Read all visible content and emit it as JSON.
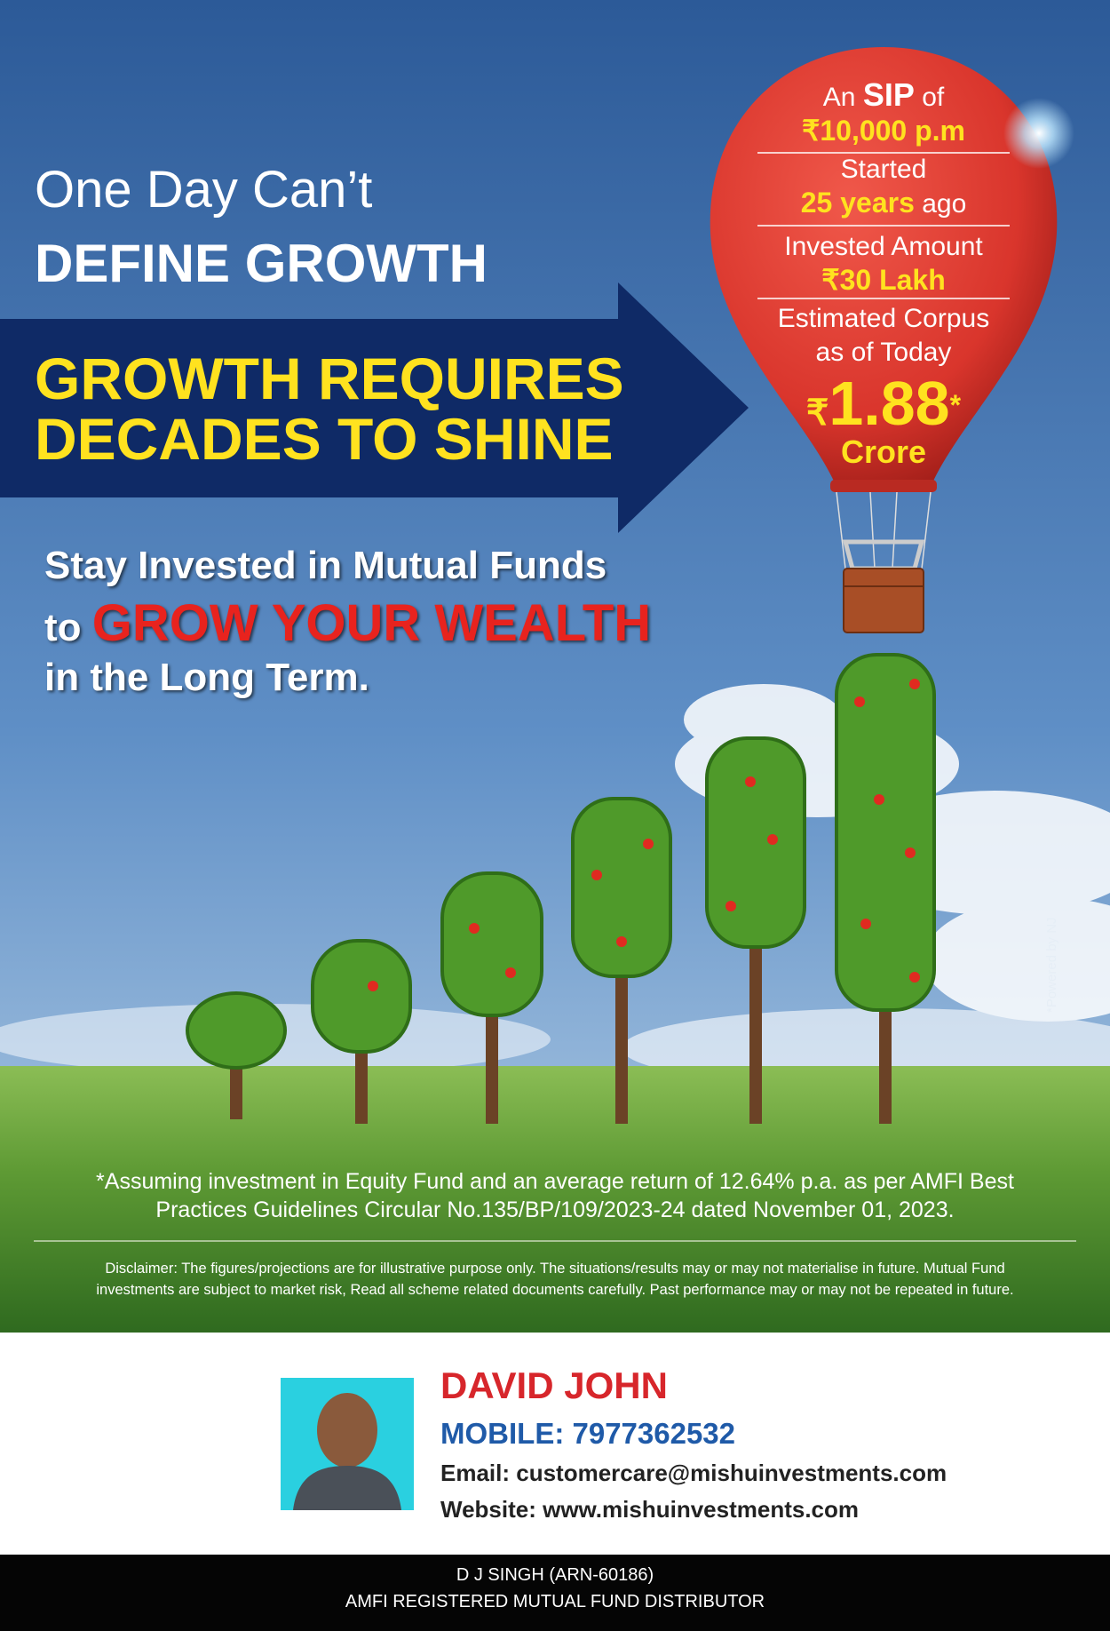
{
  "headline": {
    "line1": "One Day Can’t",
    "line2": "DEFINE GROWTH"
  },
  "arrow": {
    "line1": "GROWTH REQUIRES",
    "line2": "DECADES TO SHINE"
  },
  "tagline": {
    "line1": "Stay Invested in Mutual Funds",
    "line2_lead": "to",
    "line2_highlight": "GROW YOUR WEALTH",
    "line3": "in the Long Term."
  },
  "balloon": {
    "sip": {
      "before": "An",
      "bold": "SIP",
      "after": "of",
      "amount": "₹10,000 p.m"
    },
    "started": {
      "label": "Started",
      "years": "25 years",
      "after": "ago"
    },
    "invested": {
      "label": "Invested Amount",
      "amount": "₹30 Lakh"
    },
    "corpus": {
      "line1": "Estimated Corpus",
      "line2": "as of Today",
      "currency": "₹",
      "amount": "1.88",
      "star": "*",
      "unit": "Crore"
    }
  },
  "powered_by": "*Powered by NJ",
  "footnote": {
    "line1": "*Assuming investment in Equity Fund and an average return of 12.64% p.a. as per AMFI Best",
    "line2": "Practices Guidelines Circular No.135/BP/109/2023-24 dated November 01, 2023."
  },
  "disclaimer": {
    "line1": "Disclaimer: The figures/projections are for illustrative purpose only. The situations/results may or may not materialise in future. Mutual Fund",
    "line2": "investments are subject to market risk,  Read all scheme related documents carefully. Past performance may or may not be repeated in future."
  },
  "contact": {
    "name": "DAVID JOHN",
    "mobile": "MOBILE: 7977362532",
    "email": "Email: customercare@mishuinvestments.com",
    "website": "Website: www.mishuinvestments.com"
  },
  "footer": {
    "line1": "D J SINGH (ARN-60186)",
    "line2": "AMFI REGISTERED MUTUAL FUND DISTRIBUTOR"
  }
}
